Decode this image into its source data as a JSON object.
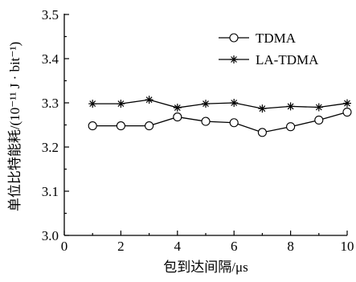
{
  "chart_data": {
    "type": "line",
    "xlabel": "包到达间隔/μs",
    "ylabel": "单位比特能耗/(10⁻¹¹ J · bit⁻¹)",
    "xlim": [
      0,
      10
    ],
    "ylim": [
      3.0,
      3.5
    ],
    "xticks": [
      "0",
      "2",
      "4",
      "6",
      "8",
      "10"
    ],
    "yticks": [
      "3.0",
      "3.1",
      "3.2",
      "3.3",
      "3.4",
      "3.5"
    ],
    "grid": false,
    "legend_position": "top-right",
    "x": [
      1,
      2,
      3,
      4,
      5,
      6,
      7,
      8,
      9,
      10
    ],
    "series": [
      {
        "name": "TDMA",
        "marker": "circle",
        "values": [
          3.248,
          3.248,
          3.248,
          3.268,
          3.258,
          3.255,
          3.233,
          3.246,
          3.261,
          3.279
        ]
      },
      {
        "name": "LA-TDMA",
        "marker": "star",
        "values": [
          3.298,
          3.298,
          3.307,
          3.289,
          3.298,
          3.3,
          3.287,
          3.292,
          3.29,
          3.299
        ]
      }
    ]
  }
}
